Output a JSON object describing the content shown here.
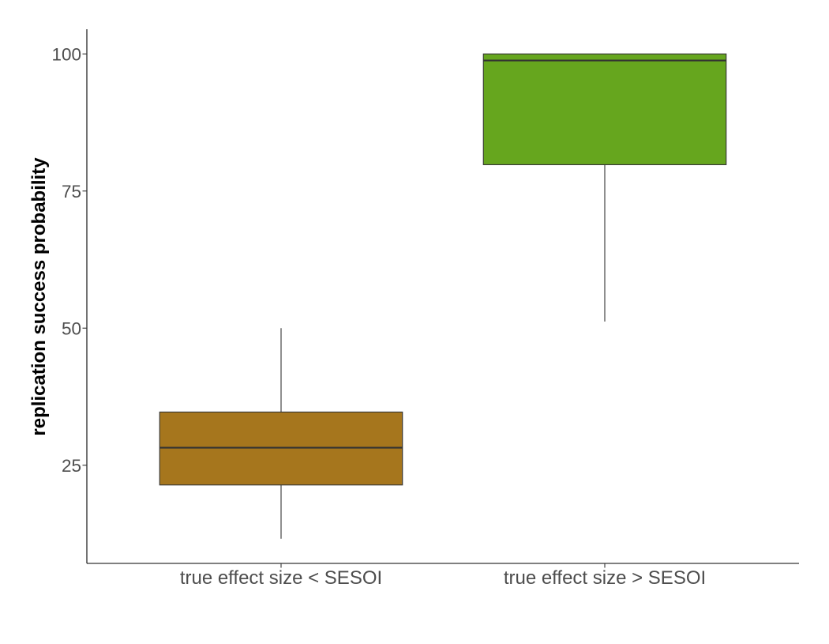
{
  "chart_data": {
    "type": "box",
    "categories": [
      "true effect size < SESOI",
      "true effect size > SESOI"
    ],
    "boxes": [
      {
        "whisker_low": 11.6,
        "q1": 21.4,
        "median": 28.2,
        "q3": 34.7,
        "whisker_high": 50.0,
        "color": "#A6761D"
      },
      {
        "whisker_low": 51.2,
        "q1": 79.8,
        "median": 98.8,
        "q3": 100.0,
        "whisker_high": 100.0,
        "color": "#66A61E"
      }
    ],
    "xlabel": "",
    "ylabel": "replication success probability",
    "yticks": [
      25,
      50,
      75,
      100
    ],
    "ylim": [
      7.1,
      104.5
    ],
    "grid": false,
    "legend": "none"
  }
}
